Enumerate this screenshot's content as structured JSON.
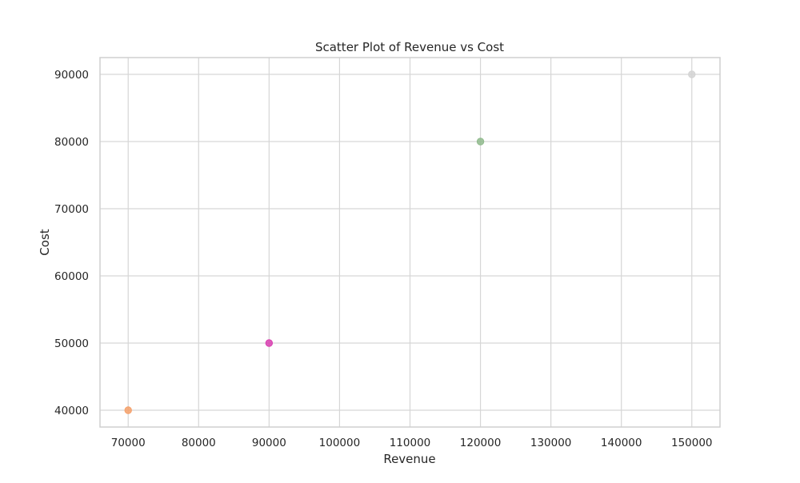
{
  "chart_data": {
    "type": "scatter",
    "title": "Scatter Plot of Revenue vs Cost",
    "xlabel": "Revenue",
    "ylabel": "Cost",
    "xlim": [
      66000,
      154000
    ],
    "ylim": [
      37500,
      92500
    ],
    "xticks": [
      70000,
      80000,
      90000,
      100000,
      110000,
      120000,
      130000,
      140000,
      150000
    ],
    "yticks": [
      40000,
      50000,
      60000,
      70000,
      80000,
      90000
    ],
    "grid": true,
    "legend": "none",
    "points": [
      {
        "x": 70000,
        "y": 40000,
        "color": "#f5a06a"
      },
      {
        "x": 90000,
        "y": 50000,
        "color": "#d83eb0"
      },
      {
        "x": 120000,
        "y": 80000,
        "color": "#8fba8c"
      },
      {
        "x": 150000,
        "y": 90000,
        "color": "#d3d3d3"
      }
    ],
    "colors": {
      "grid": "#d6d6d6",
      "spine": "#cfcfcf",
      "text": "#262626"
    }
  }
}
